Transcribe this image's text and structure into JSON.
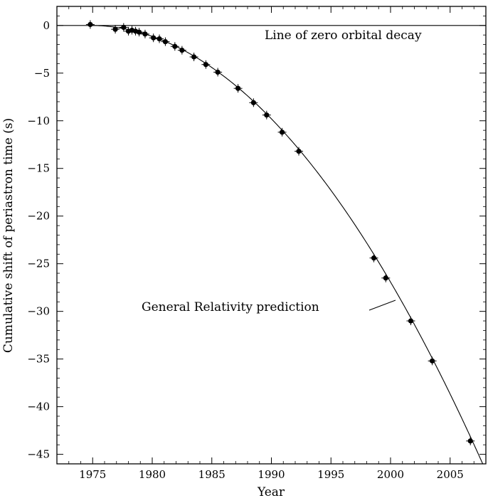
{
  "chart_data": {
    "type": "scatter",
    "xlabel": "Year",
    "ylabel": "Cumulative shift of periastron time (s)",
    "xlim": [
      1972,
      2008
    ],
    "ylim": [
      -46,
      2
    ],
    "xticks": [
      1975,
      1980,
      1985,
      1990,
      1995,
      2000,
      2005
    ],
    "yticks": [
      0,
      -5,
      -10,
      -15,
      -20,
      -25,
      -30,
      -35,
      -40,
      -45
    ],
    "grid": false,
    "annotations": {
      "zero_line": "Line of zero orbital decay",
      "gr_prediction": "General Relativity prediction"
    },
    "reference_line": {
      "y": 0
    },
    "prediction_curve": {
      "reference_year": 1974.8,
      "coefficient": -0.0424
    },
    "points": [
      {
        "x": 1974.8,
        "y": 0.1
      },
      {
        "x": 1976.9,
        "y": -0.4
      },
      {
        "x": 1977.6,
        "y": -0.2
      },
      {
        "x": 1978.0,
        "y": -0.6
      },
      {
        "x": 1978.3,
        "y": -0.5
      },
      {
        "x": 1978.6,
        "y": -0.6
      },
      {
        "x": 1978.9,
        "y": -0.7
      },
      {
        "x": 1979.4,
        "y": -0.9
      },
      {
        "x": 1980.1,
        "y": -1.3
      },
      {
        "x": 1980.6,
        "y": -1.4
      },
      {
        "x": 1981.1,
        "y": -1.7
      },
      {
        "x": 1981.9,
        "y": -2.2
      },
      {
        "x": 1982.5,
        "y": -2.6
      },
      {
        "x": 1983.5,
        "y": -3.3
      },
      {
        "x": 1984.5,
        "y": -4.1
      },
      {
        "x": 1985.5,
        "y": -4.9
      },
      {
        "x": 1987.2,
        "y": -6.6
      },
      {
        "x": 1988.5,
        "y": -8.1
      },
      {
        "x": 1989.6,
        "y": -9.4
      },
      {
        "x": 1990.9,
        "y": -11.2
      },
      {
        "x": 1992.3,
        "y": -13.2
      },
      {
        "x": 1998.6,
        "y": -24.4
      },
      {
        "x": 1999.6,
        "y": -26.5
      },
      {
        "x": 2001.7,
        "y": -31.0
      },
      {
        "x": 2003.5,
        "y": -35.2
      },
      {
        "x": 2006.7,
        "y": -43.6
      }
    ]
  }
}
